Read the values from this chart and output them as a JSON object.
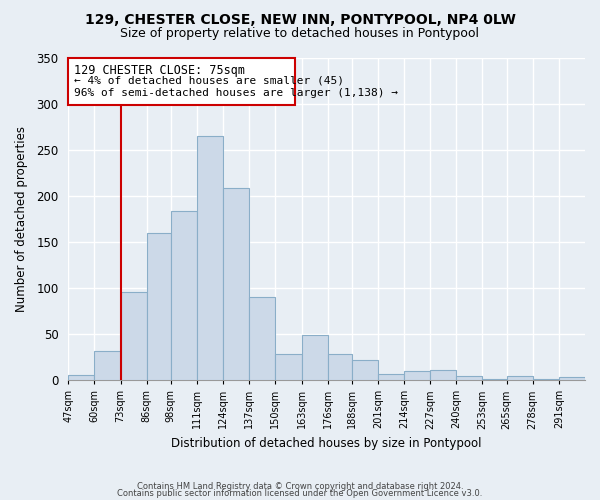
{
  "title": "129, CHESTER CLOSE, NEW INN, PONTYPOOL, NP4 0LW",
  "subtitle": "Size of property relative to detached houses in Pontypool",
  "xlabel": "Distribution of detached houses by size in Pontypool",
  "ylabel": "Number of detached properties",
  "footer_line1": "Contains HM Land Registry data © Crown copyright and database right 2024.",
  "footer_line2": "Contains public sector information licensed under the Open Government Licence v3.0.",
  "bar_color": "#ccd9e8",
  "bar_edge_color": "#8aaec8",
  "annotation_box_color": "#cc0000",
  "vline_color": "#cc0000",
  "vline_x": 73,
  "annotation_title": "129 CHESTER CLOSE: 75sqm",
  "annotation_line1": "← 4% of detached houses are smaller (45)",
  "annotation_line2": "96% of semi-detached houses are larger (1,138) →",
  "bins": [
    47,
    60,
    73,
    86,
    98,
    111,
    124,
    137,
    150,
    163,
    176,
    188,
    201,
    214,
    227,
    240,
    253,
    265,
    278,
    291,
    304
  ],
  "counts": [
    6,
    32,
    96,
    160,
    184,
    265,
    208,
    90,
    28,
    49,
    28,
    22,
    7,
    10,
    11,
    5,
    1,
    4,
    1,
    3
  ],
  "ylim": [
    0,
    350
  ],
  "yticks": [
    0,
    50,
    100,
    150,
    200,
    250,
    300,
    350
  ],
  "background_color": "#e8eef4",
  "plot_bg_color": "#e8eef4",
  "grid_color": "#ffffff",
  "title_fontsize": 10,
  "subtitle_fontsize": 9
}
